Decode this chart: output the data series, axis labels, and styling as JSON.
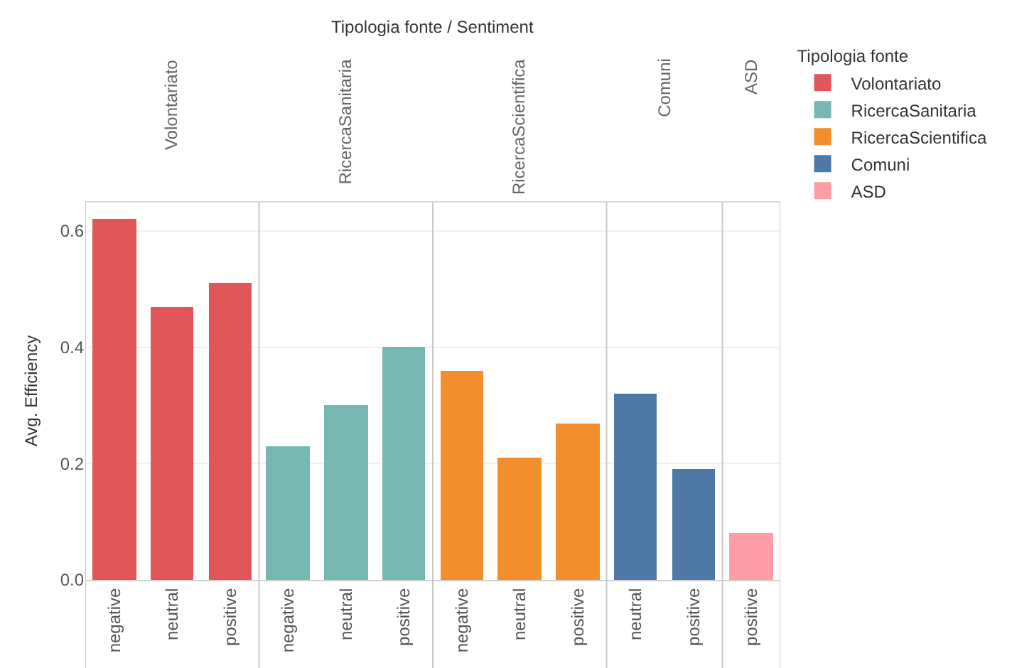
{
  "chart_data": {
    "type": "bar",
    "annotations": [
      "Tipologia fonte / Sentiment"
    ],
    "ylabel": "Avg. Efficiency",
    "legend_title": "Tipologia fonte",
    "legend": "top right",
    "grid": "y",
    "categories": [
      "negative",
      "neutral",
      "positive",
      "negative",
      "neutral",
      "positive",
      "negative",
      "neutral",
      "positive",
      "neutral",
      "positive",
      "positive"
    ],
    "ylim": [
      0,
      0.65
    ],
    "yticks": [
      {
        "value": 0,
        "label": "0.0"
      },
      0.2,
      0.4,
      0.6
    ],
    "series": [
      {
        "name": "Volontariato",
        "color": "#e15759",
        "values": [
          0.62,
          0.47,
          0.51,
          null,
          null,
          null,
          null,
          null,
          null,
          null,
          null,
          null
        ]
      },
      {
        "name": "RicercaSanitaria",
        "color": "#76b7b2",
        "values": [
          null,
          null,
          null,
          0.23,
          0.3,
          0.4,
          null,
          null,
          null,
          null,
          null,
          null
        ]
      },
      {
        "name": "RicercaScientifica",
        "color": "#f28e2b",
        "values": [
          null,
          null,
          null,
          null,
          null,
          null,
          0.36,
          0.21,
          0.27,
          null,
          null,
          null
        ]
      },
      {
        "name": "Comuni",
        "color": "#4e79a7",
        "values": [
          null,
          null,
          null,
          null,
          null,
          null,
          null,
          null,
          null,
          0.32,
          0.19,
          null
        ]
      },
      {
        "name": "ASD",
        "color": "#ff9da7",
        "values": [
          null,
          null,
          null,
          null,
          null,
          null,
          null,
          null,
          null,
          null,
          null,
          0.08
        ]
      }
    ]
  }
}
